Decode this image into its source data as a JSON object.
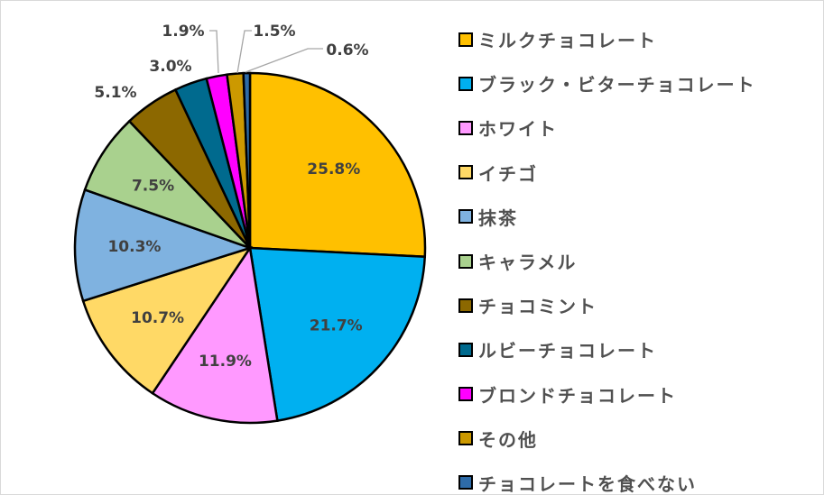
{
  "chart_data": {
    "type": "pie",
    "start_angle": "12 o'clock, clockwise",
    "legend_position": "right",
    "slices": [
      {
        "name": "ミルクチョコレート",
        "value": 25.8,
        "label": "25.8%",
        "color": "#FFC000"
      },
      {
        "name": "ブラック・ビターチョコレート",
        "value": 21.7,
        "label": "21.7%",
        "color": "#00B0F0"
      },
      {
        "name": "ホワイト",
        "value": 11.9,
        "label": "11.9%",
        "color": "#FF99FF"
      },
      {
        "name": "イチゴ",
        "value": 10.7,
        "label": "10.7%",
        "color": "#FFD966"
      },
      {
        "name": "抹茶",
        "value": 10.3,
        "label": "10.3%",
        "color": "#7FB2E0"
      },
      {
        "name": "キャラメル",
        "value": 7.5,
        "label": "7.5%",
        "color": "#A9D18E"
      },
      {
        "name": "チョコミント",
        "value": 5.1,
        "label": "5.1%",
        "color": "#8C6800"
      },
      {
        "name": "ルビーチョコレート",
        "value": 3.0,
        "label": "3.0%",
        "color": "#006A8E"
      },
      {
        "name": "ブロンドチョコレート",
        "value": 1.9,
        "label": "1.9%",
        "color": "#FF00FF"
      },
      {
        "name": "その他",
        "value": 1.5,
        "label": "1.5%",
        "color": "#CC9900"
      },
      {
        "name": "チョコレートを食べない",
        "value": 0.6,
        "label": "0.6%",
        "color": "#2E6BA8"
      }
    ]
  }
}
